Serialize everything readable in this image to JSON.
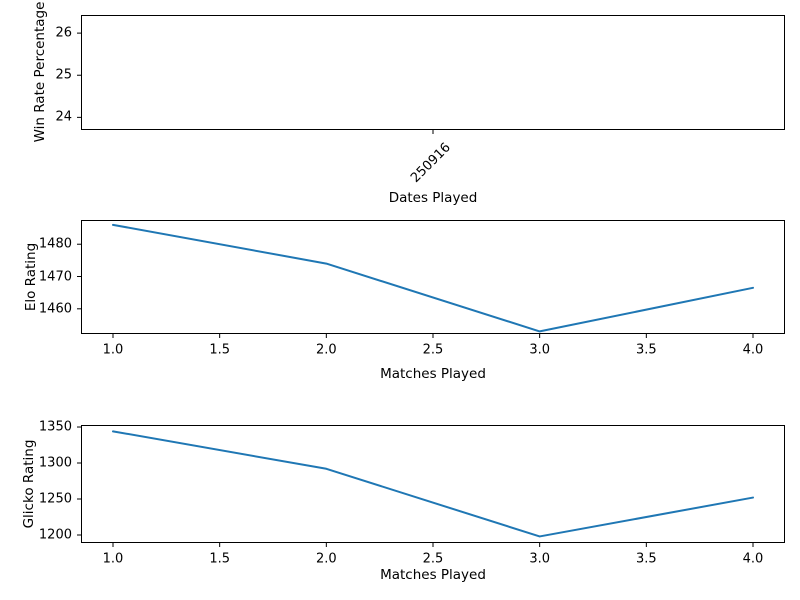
{
  "figure": {
    "background": "#ffffff",
    "axis_color": "#000000",
    "text_color": "#000000"
  },
  "chart_data": [
    {
      "id": "win-rate",
      "type": "line",
      "title": "",
      "ylabel": "Win Rate Percentage",
      "xlabel": "Dates Played",
      "xlim": [
        -1,
        1
      ],
      "ylim": [
        23.7,
        26.43
      ],
      "x_tick_values": [
        0
      ],
      "x_tick_labels": [
        "250916"
      ],
      "x_tick_rotation_deg": 45,
      "y_ticks": [
        24,
        25,
        26
      ],
      "grid": false,
      "legend": "none",
      "series": [],
      "note": "Single data point at date 250916 (win rate approx. 25%) - no visible line or marker is rendered in the plot area"
    },
    {
      "id": "elo",
      "type": "line",
      "title": "",
      "ylabel": "Elo Rating",
      "xlabel": "Matches Played",
      "xlim": [
        0.85,
        4.15
      ],
      "ylim": [
        1452.2,
        1487.5
      ],
      "x_tick_values": [
        1.0,
        1.5,
        2.0,
        2.5,
        3.0,
        3.5,
        4.0
      ],
      "x_tick_labels": [
        "1.0",
        "1.5",
        "2.0",
        "2.5",
        "3.0",
        "3.5",
        "4.0"
      ],
      "x_tick_rotation_deg": 0,
      "y_ticks": [
        1460,
        1470,
        1480
      ],
      "grid": false,
      "legend": "none",
      "series": [
        {
          "name": "Elo Rating",
          "x": [
            1,
            2,
            3,
            4
          ],
          "values": [
            1486,
            1474,
            1453,
            1466.5
          ],
          "color": "#1f77b4",
          "linewidth": 2
        }
      ]
    },
    {
      "id": "glicko",
      "type": "line",
      "title": "",
      "ylabel": "Glicko Rating",
      "xlabel": "Matches Played",
      "xlim": [
        0.85,
        4.15
      ],
      "ylim": [
        1188.9,
        1352.8
      ],
      "x_tick_values": [
        1.0,
        1.5,
        2.0,
        2.5,
        3.0,
        3.5,
        4.0
      ],
      "x_tick_labels": [
        "1.0",
        "1.5",
        "2.0",
        "2.5",
        "3.0",
        "3.5",
        "4.0"
      ],
      "x_tick_rotation_deg": 0,
      "y_ticks": [
        1200,
        1250,
        1300,
        1350
      ],
      "grid": false,
      "legend": "none",
      "series": [
        {
          "name": "Glicko Rating",
          "x": [
            1,
            2,
            3,
            4
          ],
          "values": [
            1344,
            1292,
            1198,
            1252
          ],
          "color": "#1f77b4",
          "linewidth": 2
        }
      ]
    }
  ]
}
